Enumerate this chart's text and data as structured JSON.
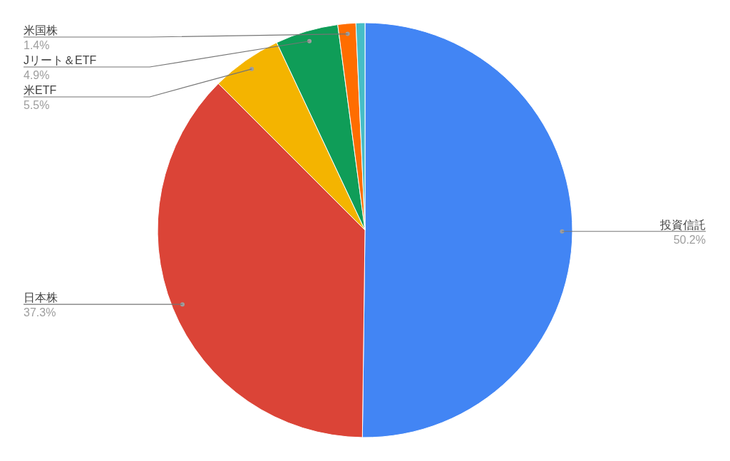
{
  "chart_data": {
    "type": "pie",
    "categories": [
      "投資信託",
      "日本株",
      "米ETF",
      "Jリート＆ETF",
      "米国株",
      null
    ],
    "values": [
      50.2,
      37.3,
      5.5,
      4.9,
      1.4,
      0.7
    ],
    "colors": [
      "#4285f4",
      "#db4437",
      "#f4b400",
      "#0f9d58",
      "#ff6d00",
      "#46bdc6"
    ],
    "value_labels": [
      "50.2%",
      "37.3%",
      "5.5%",
      "4.9%",
      "1.4%",
      null
    ]
  }
}
